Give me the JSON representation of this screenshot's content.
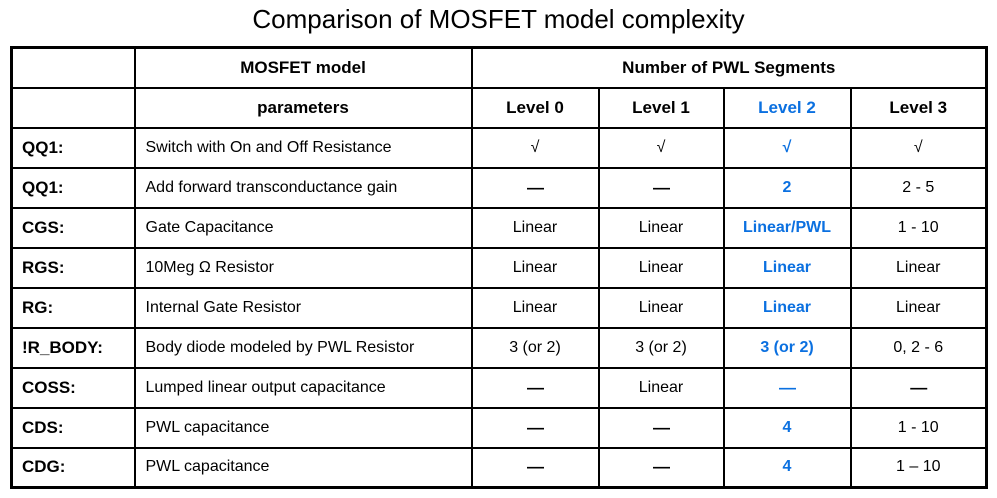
{
  "title": "Comparison of MOSFET model complexity",
  "chart_data": {
    "type": "table",
    "title": "Comparison of MOSFET model complexity",
    "header": {
      "model_group_label": "MOSFET model",
      "segments_group_label": "Number of PWL Segments",
      "parameters_label": "parameters",
      "levels": [
        "Level 0",
        "Level 1",
        "Level 2",
        "Level 3"
      ]
    },
    "highlighted_column": "Level 2",
    "rows": [
      {
        "param": "QQ1:",
        "description": "Switch with On and Off Resistance",
        "values": [
          "√",
          "√",
          "√",
          "√"
        ]
      },
      {
        "param": "QQ1:",
        "description": "Add forward transconductance gain",
        "values": [
          "—",
          "—",
          "2",
          "2 - 5"
        ]
      },
      {
        "param": "CGS:",
        "description": "Gate Capacitance",
        "values": [
          "Linear",
          "Linear",
          "Linear/PWL",
          "1 - 10"
        ]
      },
      {
        "param": "RGS:",
        "description": "10Meg Ω Resistor",
        "values": [
          "Linear",
          "Linear",
          "Linear",
          "Linear"
        ]
      },
      {
        "param": "RG:",
        "description": "Internal Gate Resistor",
        "values": [
          "Linear",
          "Linear",
          "Linear",
          "Linear"
        ]
      },
      {
        "param": "!R_BODY:",
        "description": "Body diode modeled by PWL Resistor",
        "values": [
          "3 (or 2)",
          "3 (or 2)",
          "3 (or 2)",
          "0, 2 - 6"
        ]
      },
      {
        "param": "COSS:",
        "description": "Lumped linear output capacitance",
        "values": [
          "—",
          "Linear",
          "—",
          "—"
        ]
      },
      {
        "param": "CDS:",
        "description": "PWL capacitance",
        "values": [
          "—",
          "—",
          "4",
          "1 - 10"
        ]
      },
      {
        "param": "CDG:",
        "description": "PWL capacitance",
        "values": [
          "—",
          "—",
          "4",
          "1 – 10"
        ]
      }
    ],
    "colors": {
      "highlight_blue": "#0b70e0",
      "text": "#000000",
      "border": "#000000",
      "background": "#ffffff"
    }
  }
}
